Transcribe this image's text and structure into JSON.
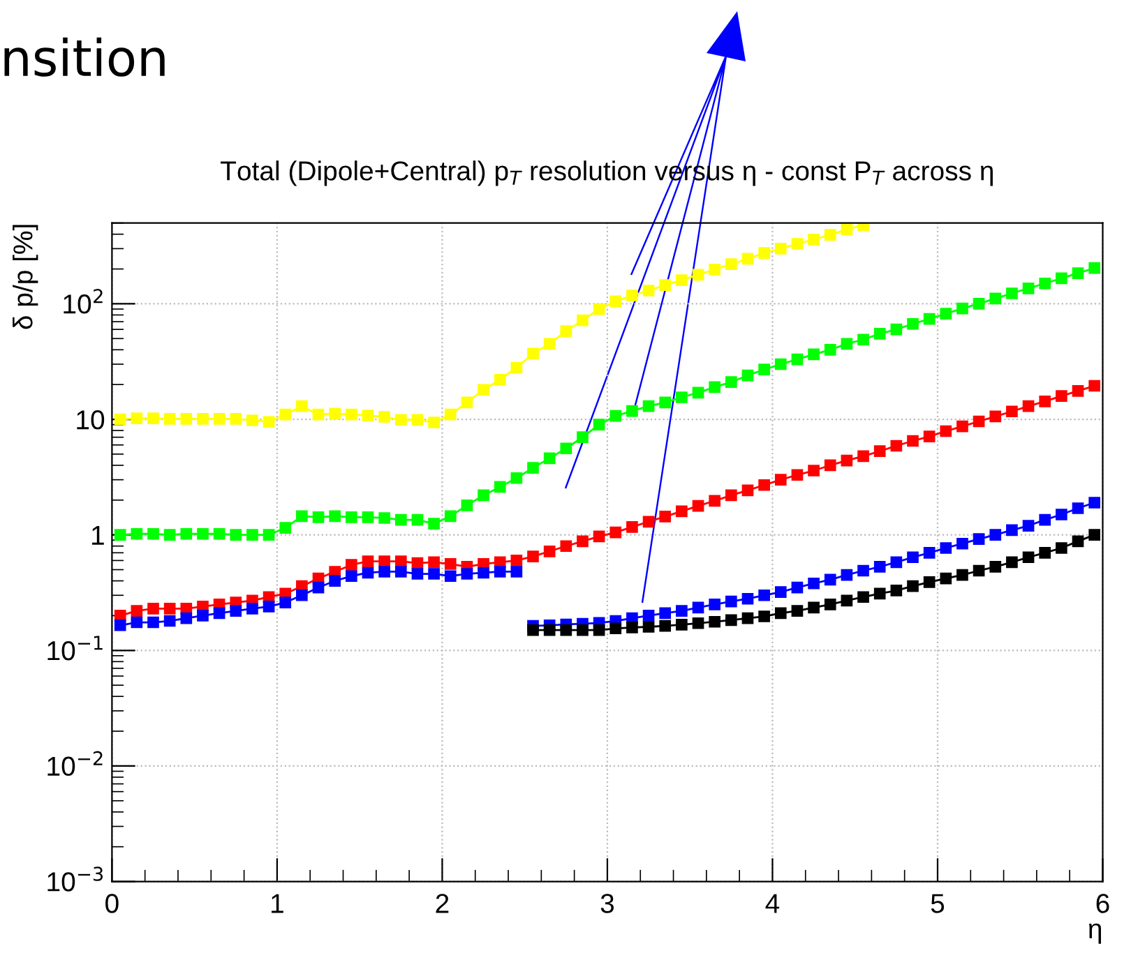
{
  "chart_data": {
    "type": "line",
    "title": "Total (Dipole+Central) p$_{T}$ resolution versus η - const P$_{T}$ across η",
    "xlabel": "η",
    "ylabel": "δ p/p [%]",
    "annotations": [
      "nsition"
    ],
    "log": "y",
    "grid": true,
    "marker": "square",
    "line_style": "solid",
    "legend": false,
    "xlim": [
      0,
      6
    ],
    "xticks": [
      0,
      1,
      2,
      3,
      4,
      5,
      6
    ],
    "ylim": [
      0.001,
      500
    ],
    "yticks": [
      {
        "value": 0.001,
        "label": "10$^{−3}$"
      },
      {
        "value": 0.01,
        "label": "10$^{−2}$"
      },
      {
        "value": 0.1,
        "label": "10$^{−1}$"
      },
      1,
      10,
      {
        "value": 100,
        "label": "10$^{2}$"
      }
    ],
    "series": [
      {
        "color": "#ffff00",
        "x": [
          0.05,
          0.15,
          0.25,
          0.35,
          0.45,
          0.55,
          0.65,
          0.75,
          0.85,
          0.95,
          1.05,
          1.15,
          1.25,
          1.35,
          1.45,
          1.55,
          1.65,
          1.75,
          1.85,
          1.95,
          2.05,
          2.15,
          2.25,
          2.35,
          2.45,
          2.55,
          2.65,
          2.75,
          2.85,
          2.95,
          3.05,
          3.15,
          3.25,
          3.35,
          3.45,
          3.55,
          3.65,
          3.75,
          3.85,
          3.95,
          4.05,
          4.15,
          4.25,
          4.35,
          4.45,
          4.55
        ],
        "values": [
          10,
          10.2,
          10.2,
          10.1,
          10.1,
          10.1,
          10.1,
          10.1,
          9.8,
          9.5,
          11,
          13,
          11,
          11.2,
          11,
          10.8,
          10.5,
          9.9,
          9.9,
          9.4,
          11,
          14,
          18,
          22,
          28,
          37,
          45,
          58,
          72,
          90,
          105,
          118,
          130,
          145,
          160,
          178,
          198,
          220,
          245,
          275,
          300,
          330,
          360,
          395,
          440,
          480
        ]
      },
      {
        "color": "#00ff00",
        "x": [
          0.05,
          0.15,
          0.25,
          0.35,
          0.45,
          0.55,
          0.65,
          0.75,
          0.85,
          0.95,
          1.05,
          1.15,
          1.25,
          1.35,
          1.45,
          1.55,
          1.65,
          1.75,
          1.85,
          1.95,
          2.05,
          2.15,
          2.25,
          2.35,
          2.45,
          2.55,
          2.65,
          2.75,
          2.85,
          2.95,
          3.05,
          3.15,
          3.25,
          3.35,
          3.45,
          3.55,
          3.65,
          3.75,
          3.85,
          3.95,
          4.05,
          4.15,
          4.25,
          4.35,
          4.45,
          4.55,
          4.65,
          4.75,
          4.85,
          4.95,
          5.05,
          5.15,
          5.25,
          5.35,
          5.45,
          5.55,
          5.65,
          5.75,
          5.85,
          5.95
        ],
        "values": [
          1.0,
          1.02,
          1.02,
          1.0,
          1.02,
          1.02,
          1.02,
          1.0,
          1.0,
          1.0,
          1.15,
          1.45,
          1.42,
          1.45,
          1.42,
          1.42,
          1.4,
          1.35,
          1.35,
          1.25,
          1.45,
          1.8,
          2.2,
          2.6,
          3.1,
          3.8,
          4.6,
          5.6,
          7,
          9,
          10.7,
          11.8,
          13,
          14,
          15.5,
          17,
          19,
          21,
          24,
          27,
          30,
          33,
          36.5,
          40,
          45,
          49,
          55,
          60,
          67,
          74,
          82,
          91,
          100,
          111,
          123,
          136,
          150,
          166,
          184,
          204
        ]
      },
      {
        "color": "#ff0000",
        "x": [
          0.05,
          0.15,
          0.25,
          0.35,
          0.45,
          0.55,
          0.65,
          0.75,
          0.85,
          0.95,
          1.05,
          1.15,
          1.25,
          1.35,
          1.45,
          1.55,
          1.65,
          1.75,
          1.85,
          1.95,
          2.05,
          2.15,
          2.25,
          2.35,
          2.45,
          2.55,
          2.65,
          2.75,
          2.85,
          2.95,
          3.05,
          3.15,
          3.25,
          3.35,
          3.45,
          3.55,
          3.65,
          3.75,
          3.85,
          3.95,
          4.05,
          4.15,
          4.25,
          4.35,
          4.45,
          4.55,
          4.65,
          4.75,
          4.85,
          4.95,
          5.05,
          5.15,
          5.25,
          5.35,
          5.45,
          5.55,
          5.65,
          5.75,
          5.85,
          5.95
        ],
        "values": [
          0.2,
          0.22,
          0.23,
          0.23,
          0.23,
          0.24,
          0.25,
          0.26,
          0.27,
          0.29,
          0.31,
          0.36,
          0.42,
          0.48,
          0.55,
          0.59,
          0.59,
          0.59,
          0.57,
          0.58,
          0.56,
          0.53,
          0.56,
          0.58,
          0.6,
          0.65,
          0.72,
          0.8,
          0.88,
          0.97,
          1.05,
          1.17,
          1.3,
          1.44,
          1.6,
          1.78,
          1.97,
          2.2,
          2.43,
          2.7,
          3.0,
          3.3,
          3.6,
          4.0,
          4.4,
          4.8,
          5.3,
          5.9,
          6.5,
          7.1,
          7.9,
          8.7,
          9.6,
          10.6,
          11.7,
          13,
          14.3,
          15.9,
          17.6,
          19.5
        ]
      },
      {
        "color": "#0000ff",
        "x": [
          0.05,
          0.15,
          0.25,
          0.35,
          0.45,
          0.55,
          0.65,
          0.75,
          0.85,
          0.95,
          1.05,
          1.15,
          1.25,
          1.35,
          1.45,
          1.55,
          1.65,
          1.75,
          1.85,
          1.95,
          2.05,
          2.15,
          2.25,
          2.35,
          2.45,
          2.5,
          2.55,
          2.65,
          2.75,
          2.85,
          2.95,
          3.05,
          3.15,
          3.25,
          3.35,
          3.45,
          3.55,
          3.65,
          3.75,
          3.85,
          3.95,
          4.05,
          4.15,
          4.25,
          4.35,
          4.45,
          4.55,
          4.65,
          4.75,
          4.85,
          4.95,
          5.05,
          5.15,
          5.25,
          5.35,
          5.45,
          5.55,
          5.65,
          5.75,
          5.85,
          5.95
        ],
        "values": [
          0.165,
          0.175,
          0.175,
          0.18,
          0.19,
          0.2,
          0.21,
          0.22,
          0.23,
          0.24,
          0.26,
          0.3,
          0.35,
          0.4,
          0.44,
          0.47,
          0.48,
          0.48,
          0.46,
          0.46,
          0.44,
          0.46,
          0.47,
          0.48,
          0.48,
          null,
          0.163,
          0.165,
          0.168,
          0.17,
          0.173,
          0.18,
          0.19,
          0.2,
          0.21,
          0.22,
          0.235,
          0.25,
          0.265,
          0.28,
          0.3,
          0.32,
          0.35,
          0.38,
          0.41,
          0.45,
          0.49,
          0.53,
          0.58,
          0.64,
          0.7,
          0.77,
          0.84,
          0.92,
          1.0,
          1.1,
          1.2,
          1.35,
          1.5,
          1.7,
          1.9
        ]
      },
      {
        "color": "#000000",
        "x": [
          2.55,
          2.65,
          2.75,
          2.85,
          2.95,
          3.05,
          3.15,
          3.25,
          3.35,
          3.45,
          3.55,
          3.65,
          3.75,
          3.85,
          3.95,
          4.05,
          4.15,
          4.25,
          4.35,
          4.45,
          4.55,
          4.65,
          4.75,
          4.85,
          4.95,
          5.05,
          5.15,
          5.25,
          5.35,
          5.45,
          5.55,
          5.65,
          5.75,
          5.85,
          5.95
        ],
        "values": [
          0.15,
          0.15,
          0.15,
          0.15,
          0.15,
          0.155,
          0.158,
          0.16,
          0.163,
          0.167,
          0.172,
          0.177,
          0.183,
          0.19,
          0.197,
          0.21,
          0.22,
          0.235,
          0.25,
          0.27,
          0.29,
          0.31,
          0.33,
          0.36,
          0.39,
          0.42,
          0.45,
          0.49,
          0.53,
          0.58,
          0.64,
          0.7,
          0.77,
          0.88,
          1.0
        ]
      }
    ]
  }
}
